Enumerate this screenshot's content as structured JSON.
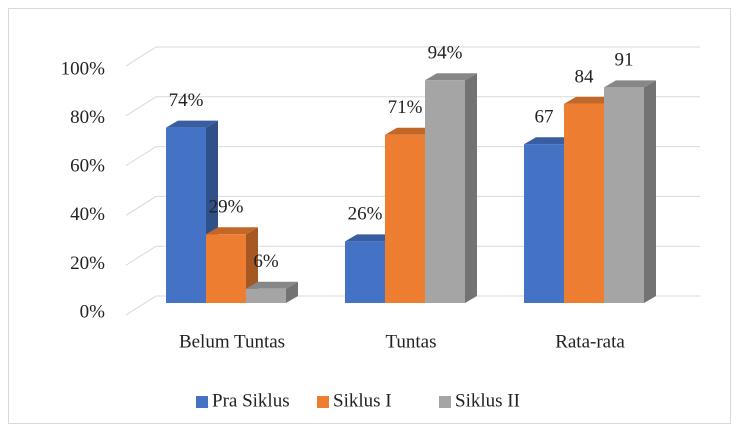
{
  "chart_data": {
    "type": "bar3d",
    "categories": [
      "Belum Tuntas",
      "Tuntas",
      "Rata-rata"
    ],
    "series": [
      {
        "name": "Pra Siklus",
        "color": "#4472c4",
        "values": [
          74,
          26,
          67
        ],
        "value_labels": [
          "74%",
          "26%",
          "67"
        ]
      },
      {
        "name": "Siklus I",
        "color": "#ed7d31",
        "values": [
          29,
          71,
          84
        ],
        "value_labels": [
          "29%",
          "71%",
          "84"
        ]
      },
      {
        "name": "Siklus II",
        "color": "#a5a5a5",
        "values": [
          6,
          94,
          91
        ],
        "value_labels": [
          "6%",
          "94%",
          "91"
        ]
      }
    ],
    "ylim": [
      0,
      100
    ],
    "yticks": [
      {
        "value": 0,
        "label": "0%"
      },
      {
        "value": 20,
        "label": "20%"
      },
      {
        "value": 40,
        "label": "40%"
      },
      {
        "value": 60,
        "label": "60%"
      },
      {
        "value": 80,
        "label": "80%"
      },
      {
        "value": 100,
        "label": "100%"
      }
    ],
    "grid": true,
    "legend": "bottom"
  }
}
